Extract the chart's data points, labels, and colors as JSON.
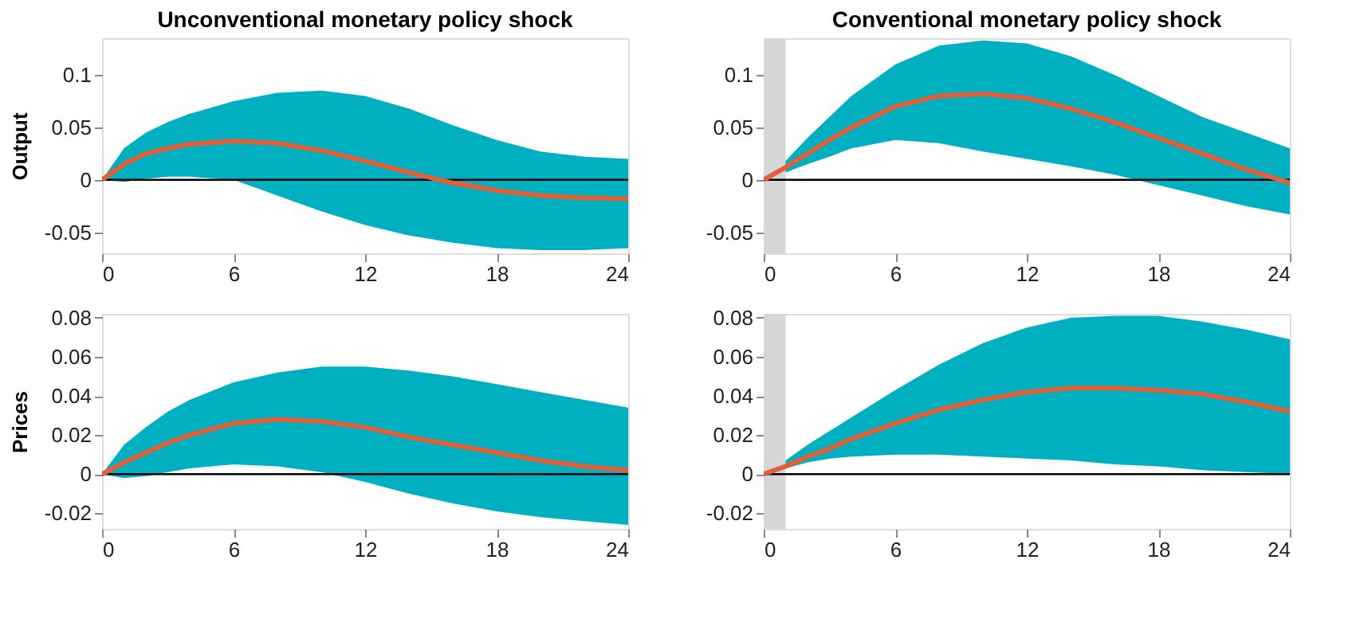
{
  "chart_data": [
    {
      "type": "line",
      "title": "Unconventional monetary policy shock",
      "ylabel": "Output",
      "x": [
        0,
        1,
        2,
        3,
        4,
        6,
        8,
        10,
        12,
        14,
        16,
        18,
        20,
        22,
        24
      ],
      "xlim": [
        0,
        24
      ],
      "xticks": [
        0,
        6,
        12,
        18,
        24
      ],
      "ylim": [
        -0.07,
        0.135
      ],
      "yticks": [
        -0.05,
        0,
        0.05,
        0.1
      ],
      "grid": false,
      "series": [
        {
          "color": "#e0603a",
          "values": [
            0,
            0.015,
            0.025,
            0.03,
            0.034,
            0.037,
            0.035,
            0.028,
            0.018,
            0.007,
            -0.003,
            -0.01,
            -0.015,
            -0.017,
            -0.018
          ],
          "upper": [
            0,
            0.03,
            0.045,
            0.055,
            0.063,
            0.075,
            0.083,
            0.085,
            0.08,
            0.068,
            0.052,
            0.038,
            0.027,
            0.022,
            0.02
          ],
          "lower": [
            0,
            -0.002,
            0.001,
            0.003,
            0.003,
            0,
            -0.015,
            -0.03,
            -0.043,
            -0.053,
            -0.06,
            -0.065,
            -0.067,
            -0.067,
            -0.065
          ]
        }
      ],
      "ref_lines": [
        {
          "axis": "y",
          "value": 0,
          "color": "#000000"
        }
      ]
    },
    {
      "type": "line",
      "title": "Conventional monetary policy shock",
      "x": [
        0,
        1,
        2,
        3,
        4,
        6,
        8,
        10,
        12,
        14,
        16,
        18,
        20,
        22,
        24
      ],
      "xlim": [
        0,
        24
      ],
      "xticks": [
        0,
        6,
        12,
        18,
        24
      ],
      "ylim": [
        -0.07,
        0.135
      ],
      "yticks": [
        -0.05,
        0,
        0.05,
        0.1
      ],
      "grid": false,
      "series": [
        {
          "color": "#e0603a",
          "values": [
            0,
            0.012,
            0.025,
            0.038,
            0.05,
            0.07,
            0.08,
            0.082,
            0.078,
            0.068,
            0.055,
            0.04,
            0.025,
            0.01,
            -0.003
          ],
          "upper": [
            0,
            0.018,
            0.04,
            0.06,
            0.08,
            0.11,
            0.128,
            0.133,
            0.13,
            0.118,
            0.1,
            0.08,
            0.06,
            0.045,
            0.03
          ],
          "lower": [
            0,
            0.007,
            0.015,
            0.022,
            0.03,
            0.038,
            0.035,
            0.027,
            0.02,
            0.013,
            0.005,
            -0.005,
            -0.015,
            -0.025,
            -0.033
          ]
        }
      ],
      "ref_lines": [
        {
          "axis": "y",
          "value": 0,
          "color": "#000000"
        }
      ],
      "bands": [
        {
          "axis": "x",
          "from": 0,
          "to": 1,
          "color": "#d6d6d8"
        }
      ]
    },
    {
      "type": "line",
      "ylabel": "Prices",
      "x": [
        0,
        1,
        2,
        3,
        4,
        6,
        8,
        10,
        12,
        14,
        16,
        18,
        20,
        22,
        24
      ],
      "xlim": [
        0,
        24
      ],
      "xticks": [
        0,
        6,
        12,
        18,
        24
      ],
      "ylim": [
        -0.028,
        0.082
      ],
      "yticks": [
        -0.02,
        0,
        0.02,
        0.04,
        0.06,
        0.08
      ],
      "grid": false,
      "series": [
        {
          "color": "#e0603a",
          "values": [
            0,
            0.006,
            0.011,
            0.016,
            0.02,
            0.026,
            0.028,
            0.027,
            0.024,
            0.019,
            0.015,
            0.011,
            0.007,
            0.004,
            0.002
          ],
          "upper": [
            0,
            0.015,
            0.024,
            0.032,
            0.038,
            0.047,
            0.052,
            0.055,
            0.055,
            0.053,
            0.05,
            0.046,
            0.042,
            0.038,
            0.034
          ],
          "lower": [
            0,
            -0.002,
            -0.001,
            0.001,
            0.003,
            0.005,
            0.004,
            0.001,
            -0.004,
            -0.01,
            -0.015,
            -0.019,
            -0.022,
            -0.024,
            -0.026
          ]
        }
      ],
      "ref_lines": [
        {
          "axis": "y",
          "value": 0,
          "color": "#000000"
        }
      ]
    },
    {
      "type": "line",
      "x": [
        0,
        1,
        2,
        3,
        4,
        6,
        8,
        10,
        12,
        14,
        16,
        18,
        20,
        22,
        24
      ],
      "xlim": [
        0,
        24
      ],
      "xticks": [
        0,
        6,
        12,
        18,
        24
      ],
      "ylim": [
        -0.028,
        0.082
      ],
      "yticks": [
        -0.02,
        0,
        0.02,
        0.04,
        0.06,
        0.08
      ],
      "grid": false,
      "series": [
        {
          "color": "#e0603a",
          "values": [
            0,
            0.004,
            0.009,
            0.013,
            0.018,
            0.026,
            0.033,
            0.038,
            0.042,
            0.044,
            0.044,
            0.043,
            0.041,
            0.037,
            0.032
          ],
          "upper": [
            0,
            0.007,
            0.015,
            0.022,
            0.029,
            0.043,
            0.056,
            0.067,
            0.075,
            0.08,
            0.081,
            0.081,
            0.078,
            0.074,
            0.069
          ],
          "lower": [
            0,
            0.003,
            0.006,
            0.008,
            0.009,
            0.01,
            0.01,
            0.009,
            0.008,
            0.007,
            0.005,
            0.004,
            0.002,
            0.001,
            0
          ]
        }
      ],
      "ref_lines": [
        {
          "axis": "y",
          "value": 0,
          "color": "#000000"
        }
      ],
      "bands": [
        {
          "axis": "x",
          "from": 0,
          "to": 1,
          "color": "#d6d6d8"
        }
      ]
    }
  ]
}
